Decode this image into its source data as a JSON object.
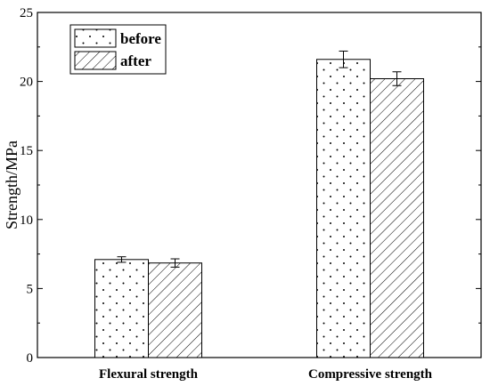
{
  "chart_data": {
    "type": "bar",
    "title": "",
    "xlabel": "",
    "ylabel": "Strength/MPa",
    "ylim": [
      0,
      25
    ],
    "yticks": [
      "0",
      "5",
      "10",
      "15",
      "20",
      "25"
    ],
    "categories": [
      "Flexural strength",
      "Compressive strength"
    ],
    "series": [
      {
        "name": "before",
        "values": [
          7.1,
          21.6
        ],
        "errors": [
          0.2,
          0.6
        ],
        "pattern": "dots"
      },
      {
        "name": "after",
        "values": [
          6.85,
          20.2
        ],
        "errors": [
          0.3,
          0.5
        ],
        "pattern": "hatch"
      }
    ],
    "grid": false,
    "legend_position": "top-left",
    "colors": {
      "bar_fill": "#ffffff",
      "bar_stroke": "#000000",
      "pattern": "#000000"
    }
  }
}
